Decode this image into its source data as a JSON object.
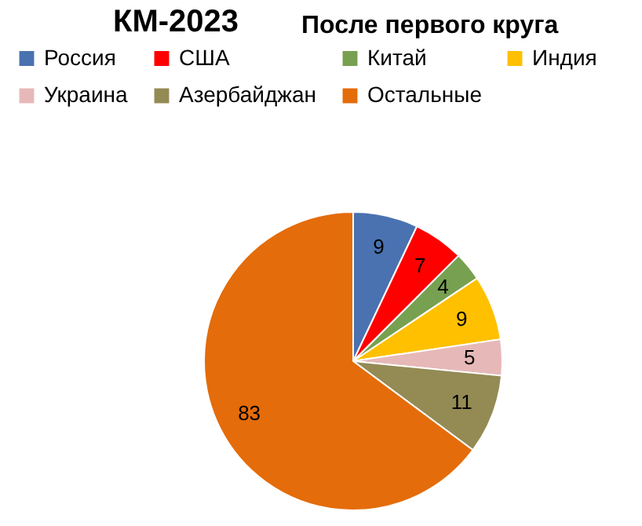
{
  "chart_data": {
    "type": "pie",
    "title": "КМ-2023",
    "subtitle": "После первого круга",
    "categories": [
      "Россия",
      "США",
      "Китай",
      "Индия",
      "Украина",
      "Азербайджан",
      "Остальные"
    ],
    "values": [
      9,
      7,
      4,
      9,
      5,
      11,
      83
    ],
    "colors": [
      "#4a72b0",
      "#ff0000",
      "#77a050",
      "#ffc000",
      "#e6b9b8",
      "#948a54",
      "#e46c0a"
    ],
    "data_labels": true,
    "legend": "top"
  }
}
